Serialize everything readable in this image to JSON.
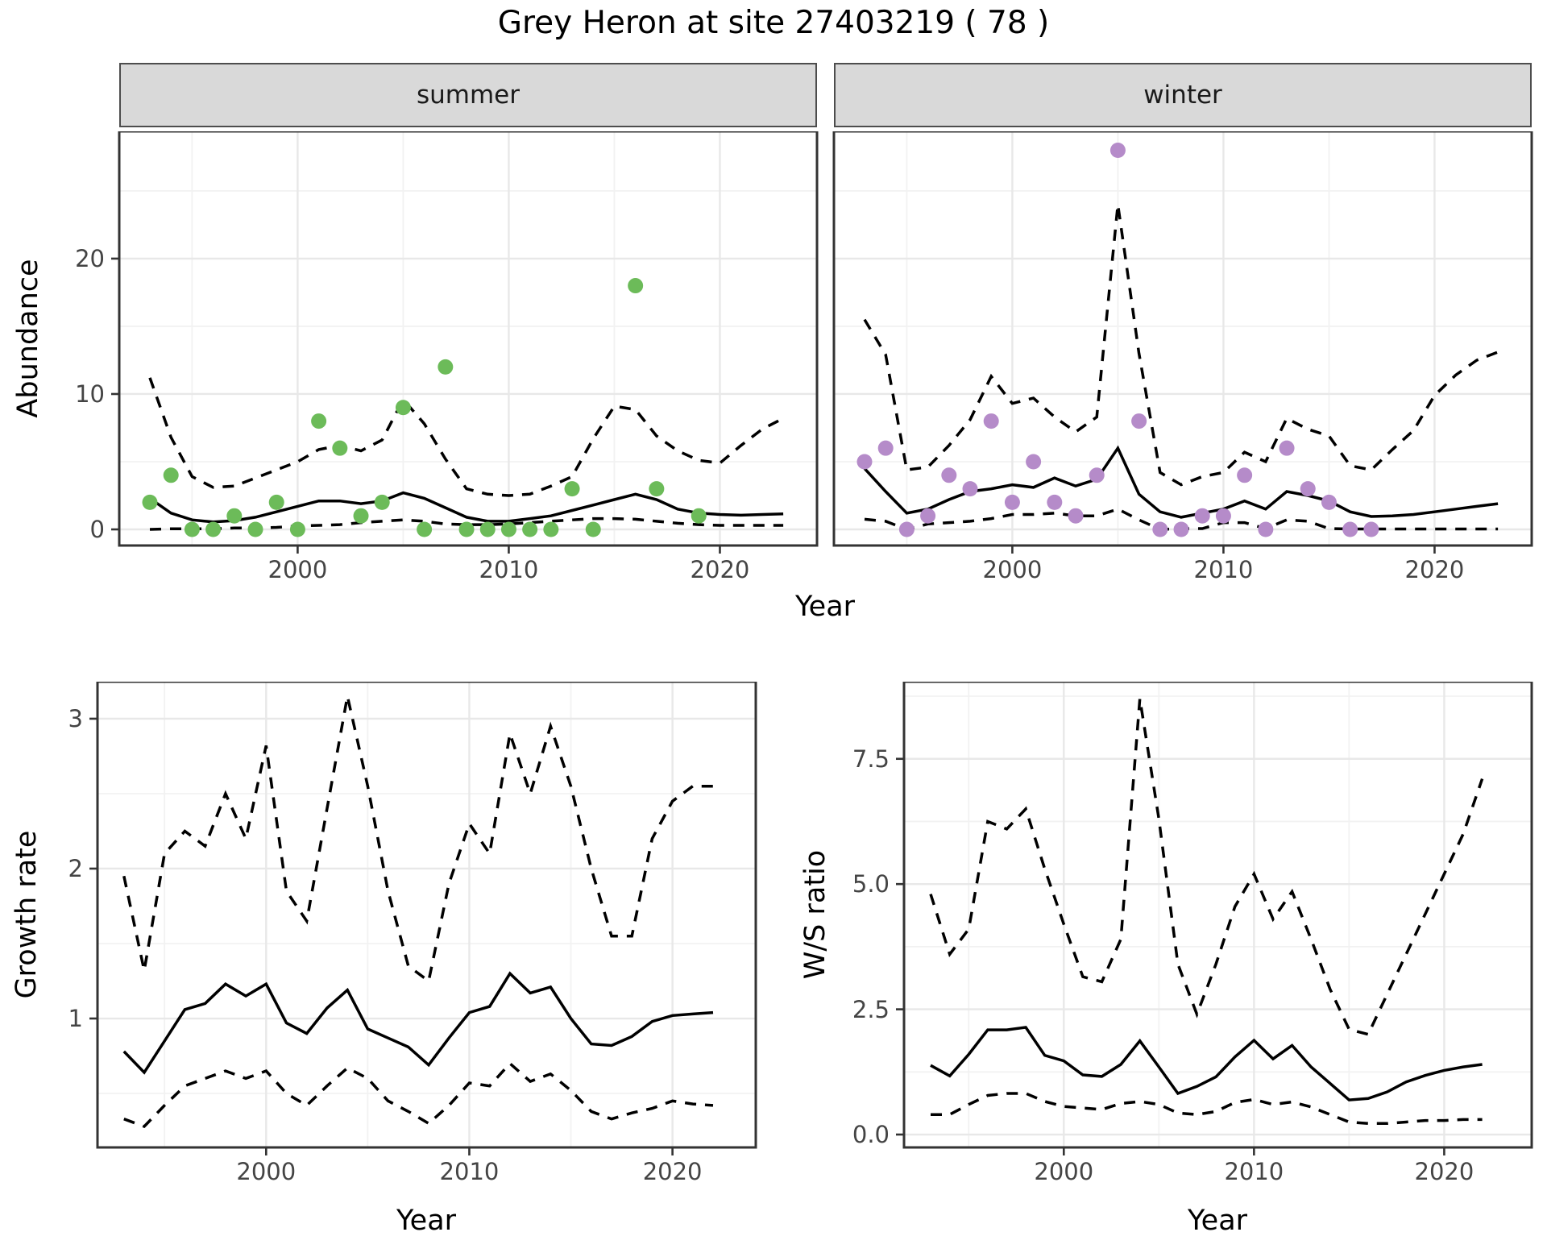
{
  "title": "Grey Heron at site 27403219 ( 78 )",
  "axis_titles": {
    "top_y": "Abundance",
    "top_x": "Year",
    "growth_y": "Growth rate",
    "growth_x": "Year",
    "ws_y": "W/S ratio",
    "ws_x": "Year"
  },
  "facets": {
    "summer_label": "summer",
    "winter_label": "winter"
  },
  "colors": {
    "summer_points": "#6CBB59",
    "winter_points": "#B58BC9",
    "line": "#000000",
    "strip_bg": "#D9D9D9",
    "panel_border": "#333333",
    "grid_major": "#E8E8E8",
    "grid_minor": "#F2F2F2",
    "tick_text": "#444444",
    "tick_mark": "#333333"
  },
  "chart_data": [
    {
      "id": "summer",
      "type": "scatter+line",
      "facet_label": "summer",
      "xlabel": "Year",
      "ylabel": "Abundance",
      "xlim": [
        1991.55,
        2024.6
      ],
      "ylim": [
        -1.19,
        29.4
      ],
      "x_major": [
        2000,
        2010,
        2020
      ],
      "x_minor": [
        1995,
        2005,
        2015
      ],
      "y_major": [
        0,
        10,
        20
      ],
      "y_minor": [
        5,
        15,
        25
      ],
      "x_tick_labels": [
        "2000",
        "2010",
        "2020"
      ],
      "y_tick_labels": [
        "0",
        "10",
        "20"
      ],
      "point_color": "#6CBB59",
      "points": {
        "years": [
          1993,
          1994,
          1995,
          1996,
          1997,
          1998,
          1999,
          2000,
          2001,
          2002,
          2003,
          2004,
          2005,
          2006,
          2007,
          2008,
          2009,
          2010,
          2011,
          2012,
          2013,
          2014,
          2016,
          2017,
          2019
        ],
        "values": [
          2,
          4,
          0,
          0,
          1,
          0,
          2,
          0,
          8,
          6,
          1,
          2,
          9,
          0,
          12,
          0,
          0,
          0,
          0,
          0,
          3,
          0,
          18,
          3,
          1
        ]
      },
      "line_years": [
        1993,
        1994,
        1995,
        1996,
        1997,
        1998,
        1999,
        2000,
        2001,
        2002,
        2003,
        2004,
        2005,
        2006,
        2007,
        2008,
        2009,
        2010,
        2011,
        2012,
        2013,
        2014,
        2015,
        2016,
        2017,
        2018,
        2019,
        2020,
        2021,
        2022,
        2023
      ],
      "solid": [
        2.3,
        1.2,
        0.7,
        0.55,
        0.65,
        0.9,
        1.3,
        1.7,
        2.1,
        2.1,
        1.9,
        2.1,
        2.7,
        2.3,
        1.6,
        0.9,
        0.6,
        0.6,
        0.8,
        1.0,
        1.4,
        1.8,
        2.2,
        2.6,
        2.2,
        1.5,
        1.2,
        1.1,
        1.05,
        1.1,
        1.15
      ],
      "upper": [
        11.2,
        6.8,
        3.9,
        3.1,
        3.2,
        3.8,
        4.4,
        5.0,
        5.9,
        6.2,
        5.8,
        6.6,
        9.6,
        7.8,
        5.2,
        3.0,
        2.6,
        2.5,
        2.6,
        3.2,
        3.9,
        6.7,
        9.1,
        8.85,
        6.9,
        5.8,
        5.1,
        4.9,
        6.2,
        7.4,
        8.2
      ],
      "lower": [
        0.0,
        0.05,
        0.05,
        0.05,
        0.1,
        0.1,
        0.15,
        0.25,
        0.3,
        0.35,
        0.5,
        0.6,
        0.7,
        0.6,
        0.4,
        0.35,
        0.35,
        0.4,
        0.5,
        0.6,
        0.7,
        0.8,
        0.8,
        0.75,
        0.6,
        0.45,
        0.35,
        0.3,
        0.3,
        0.3,
        0.3
      ]
    },
    {
      "id": "winter",
      "type": "scatter+line",
      "facet_label": "winter",
      "xlabel": "Year",
      "ylabel": "Abundance",
      "xlim": [
        1991.55,
        2024.6
      ],
      "ylim": [
        -1.19,
        29.4
      ],
      "x_major": [
        2000,
        2010,
        2020
      ],
      "x_minor": [
        1995,
        2005,
        2015
      ],
      "y_major": [
        0,
        10,
        20
      ],
      "y_minor": [
        5,
        15,
        25
      ],
      "x_tick_labels": [
        "2000",
        "2010",
        "2020"
      ],
      "y_tick_labels": [],
      "point_color": "#B58BC9",
      "points": {
        "years": [
          1993,
          1994,
          1995,
          1996,
          1997,
          1998,
          1999,
          2000,
          2001,
          2002,
          2003,
          2004,
          2005,
          2006,
          2007,
          2008,
          2009,
          2010,
          2011,
          2012,
          2013,
          2014,
          2015,
          2016,
          2017
        ],
        "values": [
          5,
          6,
          0,
          1,
          4,
          3,
          8,
          2,
          5,
          2,
          1,
          4,
          28,
          8,
          0,
          0,
          1,
          1,
          4,
          0,
          6,
          3,
          2,
          0,
          0
        ]
      },
      "line_years": [
        1993,
        1994,
        1995,
        1996,
        1997,
        1998,
        1999,
        2000,
        2001,
        2002,
        2003,
        2004,
        2005,
        2006,
        2007,
        2008,
        2009,
        2010,
        2011,
        2012,
        2013,
        2014,
        2015,
        2016,
        2017,
        2018,
        2019,
        2020,
        2021,
        2022,
        2023
      ],
      "solid": [
        4.5,
        2.8,
        1.2,
        1.5,
        2.2,
        2.8,
        3.0,
        3.3,
        3.1,
        3.8,
        3.2,
        3.7,
        6.0,
        2.6,
        1.3,
        0.9,
        1.2,
        1.5,
        2.1,
        1.5,
        2.8,
        2.5,
        2.1,
        1.3,
        0.95,
        1.0,
        1.1,
        1.3,
        1.5,
        1.7,
        1.9
      ],
      "upper": [
        15.5,
        12.9,
        4.4,
        4.6,
        6.2,
        8.1,
        11.3,
        9.3,
        9.7,
        8.3,
        7.2,
        8.3,
        24.0,
        13.0,
        4.2,
        3.3,
        3.9,
        4.2,
        5.7,
        5.0,
        8.2,
        7.4,
        6.9,
        4.7,
        4.4,
        5.9,
        7.3,
        9.9,
        11.4,
        12.5,
        13.1
      ],
      "lower": [
        0.75,
        0.6,
        0.0,
        0.4,
        0.5,
        0.6,
        0.8,
        1.1,
        1.1,
        1.2,
        1.0,
        1.0,
        1.5,
        0.7,
        0.0,
        0.05,
        0.06,
        0.5,
        0.5,
        0.06,
        0.7,
        0.6,
        0.06,
        0.03,
        0.03,
        0.03,
        0.03,
        0.03,
        0.03,
        0.03,
        0.03
      ]
    },
    {
      "id": "growth",
      "type": "line",
      "facet_label": "",
      "xlabel": "Year",
      "ylabel": "Growth rate",
      "xlim": [
        1991.7,
        2024.1
      ],
      "ylim": [
        0.14,
        3.247
      ],
      "x_major": [
        2000,
        2010,
        2020
      ],
      "x_minor": [
        1995,
        2005,
        2015
      ],
      "y_major": [
        1,
        2,
        3
      ],
      "y_minor": [
        0.5,
        1.5,
        2.5
      ],
      "x_tick_labels": [
        "2000",
        "2010",
        "2020"
      ],
      "y_tick_labels": [
        "1",
        "2",
        "3"
      ],
      "point_color": null,
      "points": {
        "years": [],
        "values": []
      },
      "line_years": [
        1993,
        1994,
        1995,
        1996,
        1997,
        1998,
        1999,
        2000,
        2001,
        2002,
        2003,
        2004,
        2005,
        2006,
        2007,
        2008,
        2009,
        2010,
        2011,
        2012,
        2013,
        2014,
        2015,
        2016,
        2017,
        2018,
        2019,
        2020,
        2021,
        2022
      ],
      "solid": [
        0.78,
        0.64,
        0.85,
        1.06,
        1.1,
        1.23,
        1.15,
        1.23,
        0.97,
        0.9,
        1.07,
        1.19,
        0.93,
        0.87,
        0.81,
        0.69,
        0.87,
        1.04,
        1.08,
        1.3,
        1.17,
        1.21,
        1.0,
        0.83,
        0.82,
        0.88,
        0.98,
        1.02,
        1.03,
        1.04
      ],
      "upper": [
        1.95,
        1.32,
        2.1,
        2.25,
        2.15,
        2.5,
        2.2,
        2.82,
        1.85,
        1.65,
        2.4,
        3.15,
        2.55,
        1.85,
        1.35,
        1.25,
        1.9,
        2.3,
        2.1,
        2.9,
        2.5,
        2.95,
        2.55,
        2.0,
        1.55,
        1.55,
        2.2,
        2.45,
        2.55,
        2.55
      ],
      "lower": [
        0.33,
        0.28,
        0.42,
        0.55,
        0.6,
        0.65,
        0.6,
        0.65,
        0.5,
        0.42,
        0.55,
        0.67,
        0.6,
        0.45,
        0.38,
        0.3,
        0.42,
        0.57,
        0.55,
        0.7,
        0.58,
        0.63,
        0.52,
        0.38,
        0.33,
        0.37,
        0.4,
        0.45,
        0.43,
        0.42
      ]
    },
    {
      "id": "ws",
      "type": "line",
      "facet_label": "",
      "xlabel": "Year",
      "ylabel": "W/S ratio",
      "xlim": [
        1991.6,
        2024.6
      ],
      "ylim": [
        -0.257,
        9.04
      ],
      "x_major": [
        2000,
        2010,
        2020
      ],
      "x_minor": [
        1995,
        2005,
        2015
      ],
      "y_major": [
        0,
        2.5,
        5.0,
        7.5
      ],
      "y_minor": [
        1.25,
        3.75,
        6.25,
        8.75
      ],
      "x_tick_labels": [
        "2000",
        "2010",
        "2020"
      ],
      "y_tick_labels": [
        "0.0",
        "2.5",
        "5.0",
        "7.5"
      ],
      "point_color": null,
      "points": {
        "years": [],
        "values": []
      },
      "line_years": [
        1993,
        1994,
        1995,
        1996,
        1997,
        1998,
        1999,
        2000,
        2001,
        2002,
        2003,
        2004,
        2005,
        2006,
        2007,
        2008,
        2009,
        2010,
        2011,
        2012,
        2013,
        2014,
        2015,
        2016,
        2017,
        2018,
        2019,
        2020,
        2021,
        2022
      ],
      "solid": [
        1.38,
        1.17,
        1.6,
        2.09,
        2.09,
        2.14,
        1.58,
        1.47,
        1.19,
        1.16,
        1.4,
        1.87,
        1.35,
        0.82,
        0.96,
        1.15,
        1.55,
        1.88,
        1.51,
        1.78,
        1.35,
        1.02,
        0.69,
        0.72,
        0.85,
        1.05,
        1.18,
        1.28,
        1.35,
        1.4
      ],
      "upper": [
        4.8,
        3.6,
        4.1,
        6.25,
        6.1,
        6.5,
        5.3,
        4.2,
        3.15,
        3.05,
        3.9,
        8.7,
        6.3,
        3.4,
        2.4,
        3.4,
        4.55,
        5.2,
        4.3,
        4.85,
        3.9,
        2.9,
        2.1,
        2.0,
        2.8,
        3.6,
        4.4,
        5.2,
        6.0,
        7.1
      ],
      "lower": [
        0.4,
        0.4,
        0.6,
        0.78,
        0.82,
        0.82,
        0.66,
        0.56,
        0.53,
        0.5,
        0.62,
        0.66,
        0.6,
        0.43,
        0.4,
        0.46,
        0.64,
        0.7,
        0.6,
        0.65,
        0.55,
        0.4,
        0.25,
        0.22,
        0.22,
        0.25,
        0.28,
        0.28,
        0.3,
        0.3
      ]
    }
  ]
}
